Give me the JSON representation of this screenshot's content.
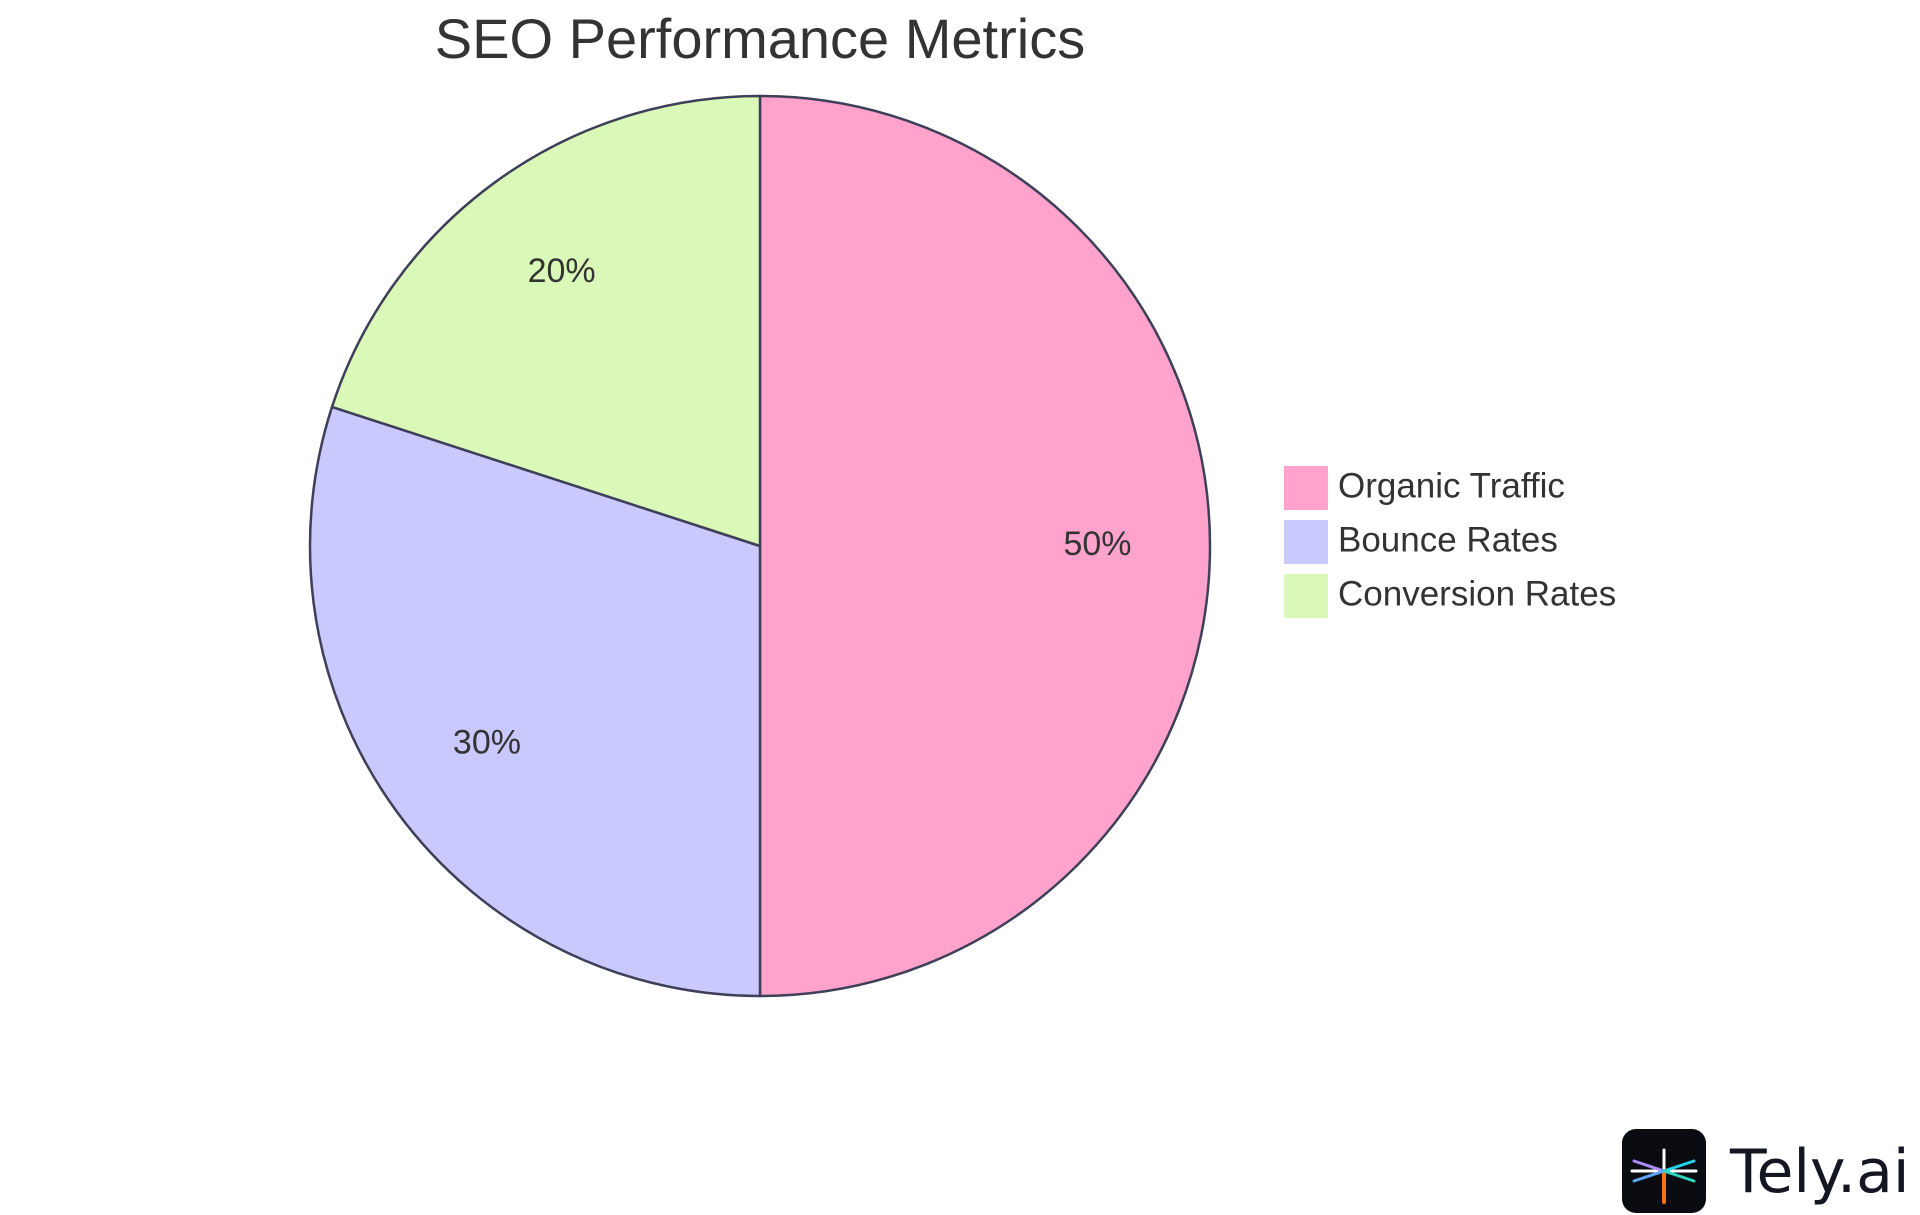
{
  "chart_data": {
    "type": "pie",
    "title": "SEO Performance Metrics",
    "slices": [
      {
        "label": "Organic Traffic",
        "value": 50,
        "display": "50%",
        "color": "#FFA3CC"
      },
      {
        "label": "Bounce Rates",
        "value": 30,
        "display": "30%",
        "color": "#C9C9FD"
      },
      {
        "label": "Conversion Rates",
        "value": 20,
        "display": "20%",
        "color": "#DAF9B8"
      }
    ],
    "legend_position": "right",
    "slice_border_color": "#3E3F58"
  },
  "branding": {
    "logo_text": "Tely.ai",
    "logo_icon": "asterisk-logo-icon"
  }
}
